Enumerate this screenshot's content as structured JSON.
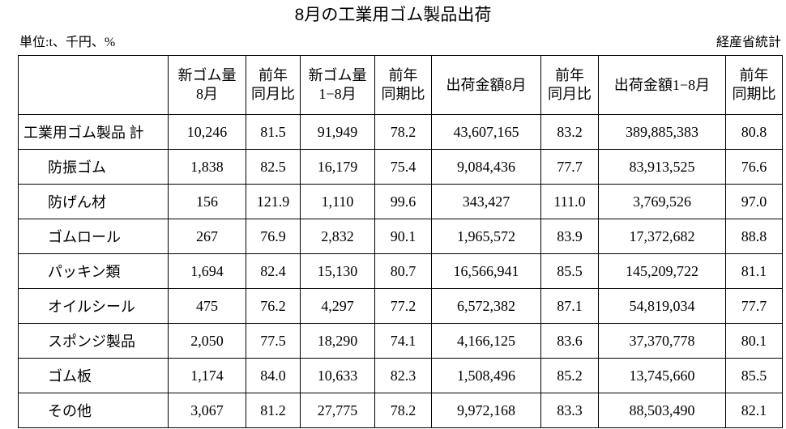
{
  "title": "8月の工業用ゴム製品出荷",
  "unit_note": "単位:t、千円、%",
  "source": "経産省統計",
  "table": {
    "headers": [
      [
        "新ゴム量",
        "8月"
      ],
      [
        "前年",
        "同月比"
      ],
      [
        "新ゴム量",
        "1−8月"
      ],
      [
        "前年",
        "同期比"
      ],
      [
        "出荷金額8月"
      ],
      [
        "前年",
        "同月比"
      ],
      [
        "出荷金額1−8月"
      ],
      [
        "前年",
        "同期比"
      ]
    ],
    "rows": [
      {
        "label": "工業用ゴム製品 計",
        "values": [
          "10,246",
          "81.5",
          "91,949",
          "78.2",
          "43,607,165",
          "83.2",
          "389,885,383",
          "80.8"
        ]
      },
      {
        "label": "防振ゴム",
        "values": [
          "1,838",
          "82.5",
          "16,179",
          "75.4",
          "9,084,436",
          "77.7",
          "83,913,525",
          "76.6"
        ]
      },
      {
        "label": "防げん材",
        "values": [
          "156",
          "121.9",
          "1,110",
          "99.6",
          "343,427",
          "111.0",
          "3,769,526",
          "97.0"
        ]
      },
      {
        "label": "ゴムロール",
        "values": [
          "267",
          "76.9",
          "2,832",
          "90.1",
          "1,965,572",
          "83.9",
          "17,372,682",
          "88.8"
        ]
      },
      {
        "label": "パッキン類",
        "values": [
          "1,694",
          "82.4",
          "15,130",
          "80.7",
          "16,566,941",
          "85.5",
          "145,209,722",
          "81.1"
        ]
      },
      {
        "label": "オイルシール",
        "values": [
          "475",
          "76.2",
          "4,297",
          "77.2",
          "6,572,382",
          "87.1",
          "54,819,034",
          "77.7"
        ]
      },
      {
        "label": "スポンジ製品",
        "values": [
          "2,050",
          "77.5",
          "18,290",
          "74.1",
          "4,166,125",
          "83.6",
          "37,370,778",
          "80.1"
        ]
      },
      {
        "label": "ゴム板",
        "values": [
          "1,174",
          "84.0",
          "10,633",
          "82.3",
          "1,508,496",
          "85.2",
          "13,745,660",
          "85.5"
        ]
      },
      {
        "label": "その他",
        "values": [
          "3,067",
          "81.2",
          "27,775",
          "78.2",
          "9,972,168",
          "83.3",
          "88,503,490",
          "82.1"
        ]
      }
    ]
  }
}
